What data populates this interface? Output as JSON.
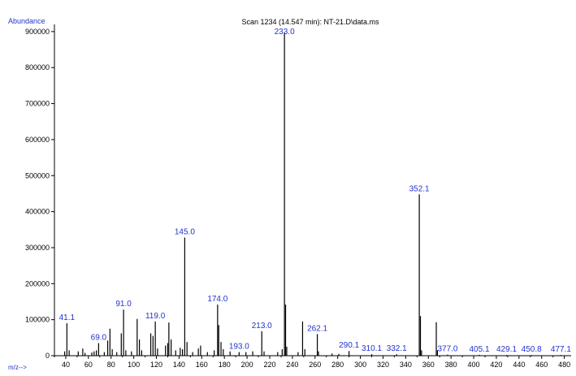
{
  "chart_data": {
    "type": "bar",
    "title": "Scan 1234 (14.547 min): NT-21.D\\data.ms",
    "ylabel": "Abundance",
    "xlabel": "m/z-->",
    "xlim": [
      30,
      486
    ],
    "ylim": [
      0,
      920000
    ],
    "x_ticks": [
      40,
      60,
      80,
      100,
      120,
      140,
      160,
      180,
      200,
      220,
      240,
      260,
      280,
      300,
      320,
      340,
      360,
      380,
      400,
      420,
      440,
      460,
      480
    ],
    "y_ticks": [
      0,
      100000,
      200000,
      300000,
      400000,
      500000,
      600000,
      700000,
      800000,
      900000
    ],
    "peaks": [
      {
        "mz": 39,
        "abundance": 12000
      },
      {
        "mz": 41,
        "abundance": 90000
      },
      {
        "mz": 43,
        "abundance": 15000
      },
      {
        "mz": 51,
        "abundance": 12000
      },
      {
        "mz": 55,
        "abundance": 20000
      },
      {
        "mz": 57,
        "abundance": 8000
      },
      {
        "mz": 63,
        "abundance": 9000
      },
      {
        "mz": 65,
        "abundance": 12000
      },
      {
        "mz": 67,
        "abundance": 15000
      },
      {
        "mz": 69,
        "abundance": 35000
      },
      {
        "mz": 74,
        "abundance": 10000
      },
      {
        "mz": 77,
        "abundance": 42000
      },
      {
        "mz": 79,
        "abundance": 75000
      },
      {
        "mz": 81,
        "abundance": 18000
      },
      {
        "mz": 85,
        "abundance": 10000
      },
      {
        "mz": 89,
        "abundance": 62000
      },
      {
        "mz": 91,
        "abundance": 128000
      },
      {
        "mz": 93,
        "abundance": 15000
      },
      {
        "mz": 98,
        "abundance": 12000
      },
      {
        "mz": 103,
        "abundance": 102000
      },
      {
        "mz": 105,
        "abundance": 45000
      },
      {
        "mz": 107,
        "abundance": 15000
      },
      {
        "mz": 115,
        "abundance": 62000
      },
      {
        "mz": 117,
        "abundance": 55000
      },
      {
        "mz": 119,
        "abundance": 95000
      },
      {
        "mz": 121,
        "abundance": 20000
      },
      {
        "mz": 128,
        "abundance": 28000
      },
      {
        "mz": 130,
        "abundance": 35000
      },
      {
        "mz": 131,
        "abundance": 92000
      },
      {
        "mz": 133,
        "abundance": 45000
      },
      {
        "mz": 137,
        "abundance": 15000
      },
      {
        "mz": 141,
        "abundance": 22000
      },
      {
        "mz": 143,
        "abundance": 18000
      },
      {
        "mz": 145,
        "abundance": 328000
      },
      {
        "mz": 147,
        "abundance": 38000
      },
      {
        "mz": 152,
        "abundance": 10000
      },
      {
        "mz": 157,
        "abundance": 20000
      },
      {
        "mz": 159,
        "abundance": 28000
      },
      {
        "mz": 165,
        "abundance": 10000
      },
      {
        "mz": 171,
        "abundance": 15000
      },
      {
        "mz": 174,
        "abundance": 142000
      },
      {
        "mz": 175,
        "abundance": 85000
      },
      {
        "mz": 177,
        "abundance": 38000
      },
      {
        "mz": 179,
        "abundance": 18000
      },
      {
        "mz": 185,
        "abundance": 12000
      },
      {
        "mz": 193,
        "abundance": 10000
      },
      {
        "mz": 199,
        "abundance": 10000
      },
      {
        "mz": 205,
        "abundance": 12000
      },
      {
        "mz": 213,
        "abundance": 68000
      },
      {
        "mz": 215,
        "abundance": 12000
      },
      {
        "mz": 227,
        "abundance": 10000
      },
      {
        "mz": 231,
        "abundance": 18000
      },
      {
        "mz": 233,
        "abundance": 898000
      },
      {
        "mz": 234,
        "abundance": 142000
      },
      {
        "mz": 235,
        "abundance": 25000
      },
      {
        "mz": 245,
        "abundance": 10000
      },
      {
        "mz": 249,
        "abundance": 95000
      },
      {
        "mz": 251,
        "abundance": 18000
      },
      {
        "mz": 262,
        "abundance": 60000
      },
      {
        "mz": 263,
        "abundance": 12000
      },
      {
        "mz": 275,
        "abundance": 6000
      },
      {
        "mz": 281,
        "abundance": 5000
      },
      {
        "mz": 290,
        "abundance": 13000
      },
      {
        "mz": 310,
        "abundance": 4000
      },
      {
        "mz": 332,
        "abundance": 4000
      },
      {
        "mz": 352,
        "abundance": 448000
      },
      {
        "mz": 353,
        "abundance": 110000
      },
      {
        "mz": 354,
        "abundance": 15000
      },
      {
        "mz": 367,
        "abundance": 93000
      },
      {
        "mz": 368,
        "abundance": 15000
      },
      {
        "mz": 377,
        "abundance": 3000
      },
      {
        "mz": 405,
        "abundance": 2500
      },
      {
        "mz": 429,
        "abundance": 2000
      },
      {
        "mz": 451,
        "abundance": 2000
      },
      {
        "mz": 477,
        "abundance": 2000
      }
    ],
    "annotations": [
      {
        "mz": 41,
        "text": "41.1"
      },
      {
        "mz": 69,
        "text": "69.0"
      },
      {
        "mz": 91,
        "text": "91.0"
      },
      {
        "mz": 119,
        "text": "119.0"
      },
      {
        "mz": 145,
        "text": "145.0"
      },
      {
        "mz": 174,
        "text": "174.0"
      },
      {
        "mz": 193,
        "text": "193.0"
      },
      {
        "mz": 213,
        "text": "213.0"
      },
      {
        "mz": 233,
        "text": "233.0"
      },
      {
        "mz": 262,
        "text": "262.1"
      },
      {
        "mz": 290,
        "text": "290.1"
      },
      {
        "mz": 310,
        "text": "310.1"
      },
      {
        "mz": 332,
        "text": "332.1"
      },
      {
        "mz": 352,
        "text": "352.1"
      },
      {
        "mz": 377,
        "text": "377.0"
      },
      {
        "mz": 405,
        "text": "405.1"
      },
      {
        "mz": 429,
        "text": "429.1"
      },
      {
        "mz": 451,
        "text": "450.8"
      },
      {
        "mz": 477,
        "text": "477.1"
      }
    ],
    "colors": {
      "axis": "#000000",
      "bars": "#000000",
      "annotation": "#2233cc",
      "axis_title": "#2233cc"
    }
  }
}
